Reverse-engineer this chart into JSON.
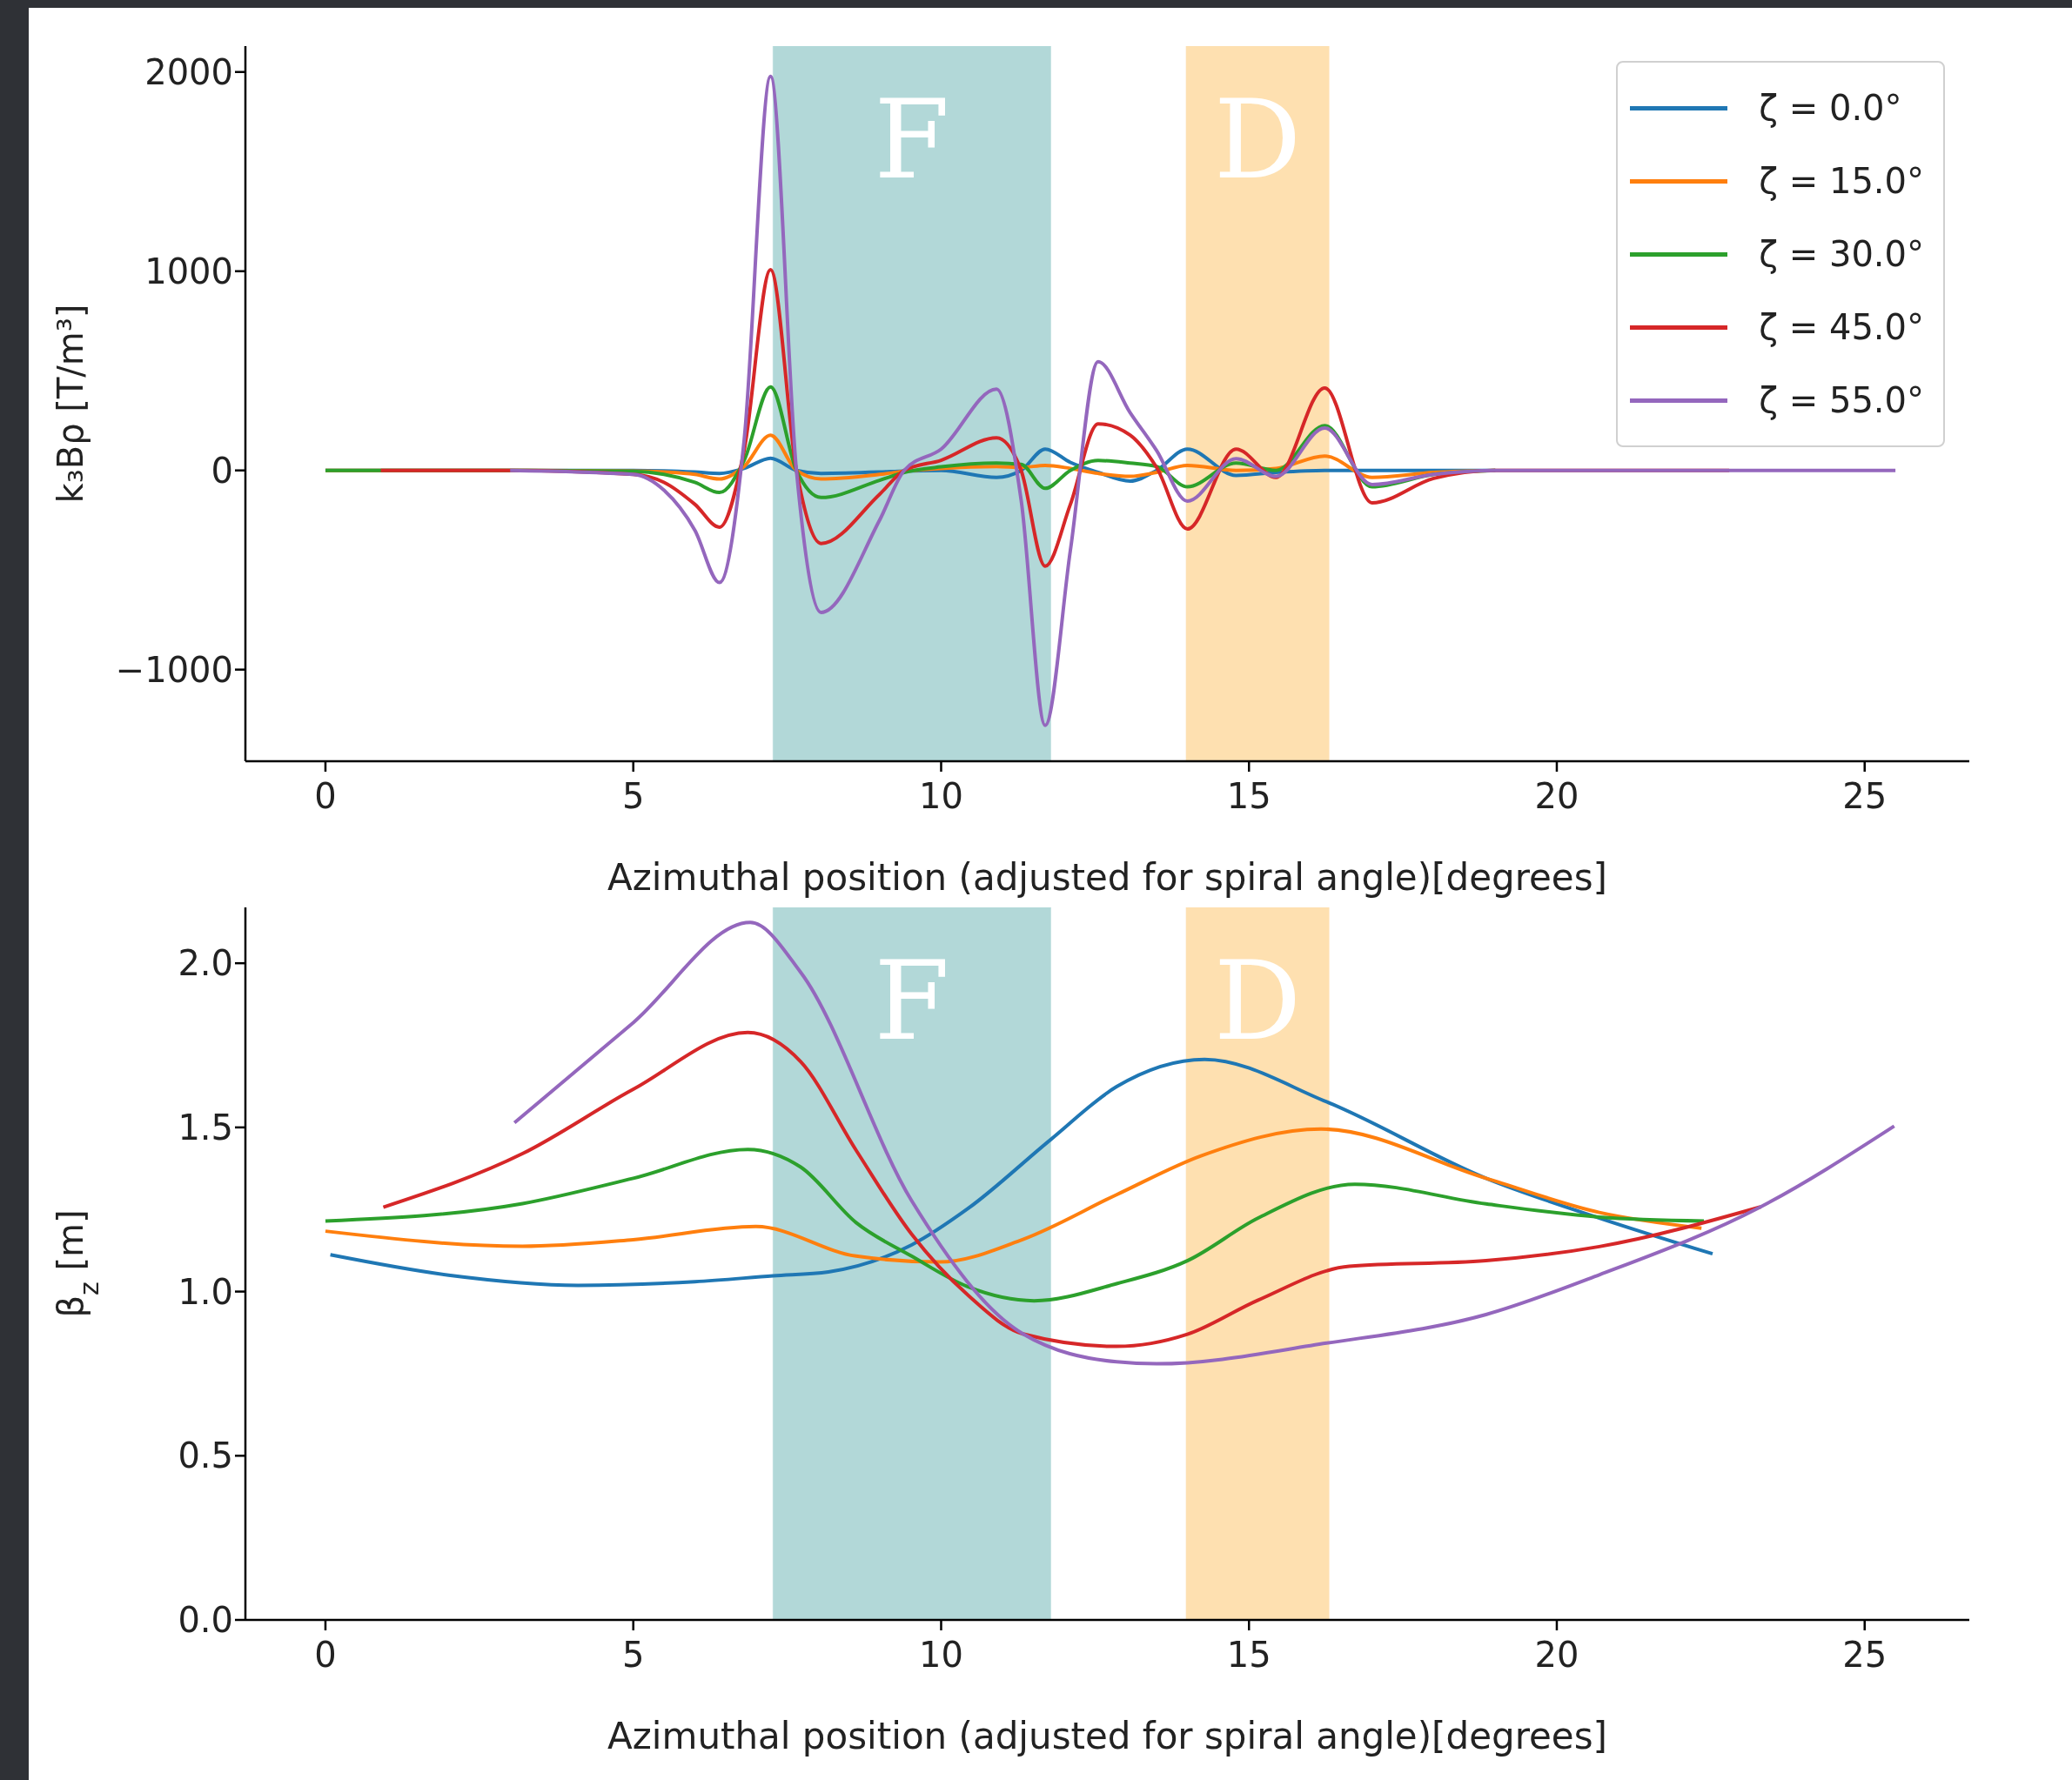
{
  "chart_data": [
    {
      "type": "line",
      "xlabel": "Azimuthal position (adjusted for spiral angle)[degrees]",
      "ylabel": "k₃Bρ [T/m³]",
      "xlim": [
        -1.3,
        26.7
      ],
      "xticks": [
        0,
        5,
        10,
        15,
        20,
        25
      ],
      "ylim": [
        -1460,
        2130
      ],
      "yticks": [
        {
          "value": -1000,
          "label": "−1000"
        },
        0,
        1000,
        2000
      ],
      "legend": "top right",
      "bands": [
        {
          "axis": "x",
          "from": 7.27,
          "to": 11.78,
          "label": "F",
          "color": "#b2d8d8"
        },
        {
          "axis": "x",
          "from": 13.98,
          "to": 16.3,
          "label": "D",
          "color": "#fee0b0"
        }
      ],
      "series": [
        {
          "name": "ζ = 0.0°",
          "color": "#1f77b4",
          "x": [
            0,
            3,
            5,
            5.5,
            6,
            6.4,
            6.8,
            7.23,
            7.65,
            8.05,
            9,
            9.4,
            10,
            10.9,
            11.3,
            11.69,
            12.1,
            12.55,
            13.07,
            13.5,
            14,
            14.79,
            15.44,
            16.23,
            17,
            18,
            19
          ],
          "values": [
            0,
            0,
            0,
            -2,
            -8,
            -15,
            10,
            61,
            0,
            -15,
            -8,
            -3,
            0,
            -35,
            0,
            107,
            40,
            -10,
            -54,
            0,
            107,
            -25,
            -10,
            0,
            0,
            0,
            0
          ]
        },
        {
          "name": "ζ = 15.0°",
          "color": "#ff7f0e",
          "x": [
            0,
            3,
            5,
            5.5,
            6,
            6.4,
            6.8,
            7.23,
            7.65,
            8.05,
            9,
            9.4,
            10,
            10.9,
            11.3,
            11.69,
            12.1,
            12.55,
            13.07,
            13.5,
            14,
            14.79,
            15.44,
            16.23,
            17,
            18,
            19
          ],
          "values": [
            0,
            0,
            -3,
            -8,
            -20,
            -43,
            20,
            177,
            0,
            -43,
            -20,
            -5,
            10,
            20,
            15,
            25,
            10,
            -15,
            -30,
            -10,
            25,
            0,
            10,
            72,
            -35,
            -10,
            0
          ]
        },
        {
          "name": "ζ = 30.0°",
          "color": "#2ca02c",
          "x": [
            0,
            3,
            5,
            5.5,
            6,
            6.4,
            6.8,
            7.23,
            7.65,
            8.05,
            9,
            9.4,
            10,
            10.9,
            11.3,
            11.69,
            12.1,
            12.55,
            13.07,
            13.5,
            14,
            14.79,
            15.44,
            16.23,
            17,
            18,
            19
          ],
          "values": [
            0,
            0,
            -5,
            -20,
            -60,
            -111,
            50,
            419,
            0,
            -136,
            -50,
            -10,
            18,
            37,
            30,
            -90,
            0,
            50,
            37,
            20,
            -82,
            37,
            0,
            225,
            -82,
            -20,
            0
          ]
        },
        {
          "name": "ζ = 45.0°",
          "color": "#d62728",
          "x": [
            0.9,
            3,
            5,
            5.5,
            6,
            6.4,
            6.8,
            7.23,
            7.65,
            8.05,
            9,
            9.4,
            10,
            10.9,
            11.3,
            11.69,
            12.1,
            12.55,
            13.07,
            13.5,
            14,
            14.79,
            15.44,
            16.23,
            17,
            18,
            19,
            20,
            22.8
          ],
          "values": [
            0,
            0,
            -20,
            -60,
            -170,
            -285,
            100,
            1008,
            0,
            -367,
            -120,
            0,
            51,
            164,
            0,
            -481,
            -170,
            234,
            177,
            15,
            -294,
            107,
            -35,
            414,
            -163,
            -40,
            0,
            0,
            0
          ]
        },
        {
          "name": "ζ = 55.0°",
          "color": "#9467bd",
          "x": [
            3,
            5,
            5.5,
            6,
            6.4,
            6.8,
            7.23,
            7.65,
            8.05,
            9,
            9.4,
            10,
            10.9,
            11.3,
            11.69,
            12.1,
            12.55,
            13.07,
            13.5,
            14,
            14.79,
            15.44,
            16.23,
            17,
            18,
            19,
            20,
            22.5,
            25.5
          ],
          "values": [
            0,
            -20,
            -100,
            -300,
            -563,
            150,
            1978,
            0,
            -713,
            -250,
            0,
            107,
            408,
            -150,
            -1280,
            -400,
            546,
            290,
            100,
            -154,
            59,
            -30,
            213,
            -71,
            -20,
            0,
            0,
            0,
            0
          ]
        }
      ]
    },
    {
      "type": "line",
      "xlabel": "Azimuthal position (adjusted for spiral angle)[degrees]",
      "ylabel": "β$_{z}$ [m]",
      "xlim": [
        -1.3,
        26.7
      ],
      "xticks": [
        0,
        5,
        10,
        15,
        20,
        25
      ],
      "ylim": [
        0,
        2.17
      ],
      "yticks": [
        {
          "value": 0,
          "label": "0.0"
        },
        {
          "value": 0.5,
          "label": "0.5"
        },
        {
          "value": 1,
          "label": "1.0"
        },
        {
          "value": 1.5,
          "label": "1.5"
        },
        {
          "value": 2,
          "label": "2.0"
        }
      ],
      "bands": [
        {
          "axis": "x",
          "from": 7.27,
          "to": 11.78,
          "label": "F",
          "color": "#b2d8d8"
        },
        {
          "axis": "x",
          "from": 13.98,
          "to": 16.3,
          "label": "D",
          "color": "#fee0b0"
        }
      ],
      "series": [
        {
          "color": "#1f77b4",
          "x": [
            0.08,
            2,
            4.1,
            6,
            7.27,
            8.17,
            9.52,
            10.43,
            11.78,
            12.85,
            14.28,
            16.26,
            18.85,
            20.69,
            22.53
          ],
          "values": [
            1.112,
            1.05,
            1.019,
            1.03,
            1.048,
            1.06,
            1.142,
            1.252,
            1.463,
            1.624,
            1.707,
            1.578,
            1.345,
            1.224,
            1.115
          ]
        },
        {
          "color": "#ff7f0e",
          "x": [
            0,
            3.2,
            5,
            6.99,
            8.62,
            9.97,
            11.33,
            12.85,
            14.23,
            16.17,
            18.85,
            20.69,
            22.35
          ],
          "values": [
            1.184,
            1.138,
            1.158,
            1.198,
            1.108,
            1.09,
            1.159,
            1.295,
            1.414,
            1.495,
            1.345,
            1.241,
            1.193
          ]
        },
        {
          "color": "#2ca02c",
          "x": [
            0,
            3.2,
            5,
            6.86,
            7.72,
            8.62,
            9.52,
            10.43,
            11.51,
            12.85,
            14,
            15.15,
            16.72,
            18.85,
            20.69,
            22.39
          ],
          "values": [
            1.215,
            1.268,
            1.345,
            1.433,
            1.379,
            1.21,
            1.108,
            1.015,
            0.972,
            1.024,
            1.094,
            1.224,
            1.327,
            1.267,
            1.227,
            1.215
          ]
        },
        {
          "color": "#d62728",
          "x": [
            0.94,
            3.2,
            5,
            6.86,
            7.72,
            8.62,
            9.52,
            10.43,
            11.33,
            12.85,
            14,
            15.15,
            16.63,
            18.85,
            20.69,
            23.31
          ],
          "values": [
            1.257,
            1.42,
            1.616,
            1.789,
            1.7,
            1.43,
            1.175,
            0.99,
            0.871,
            0.833,
            0.87,
            0.974,
            1.077,
            1.094,
            1.137,
            1.258
          ]
        },
        {
          "color": "#9467bd",
          "x": [
            3.07,
            5,
            6.9,
            7.72,
            9.52,
            11.33,
            12.85,
            13.5,
            16.26,
            18.85,
            20.69,
            23.31,
            25.48
          ],
          "values": [
            1.514,
            1.819,
            2.124,
            1.972,
            1.277,
            0.871,
            0.786,
            0.78,
            0.843,
            0.93,
            1.051,
            1.258,
            1.504
          ]
        }
      ]
    }
  ]
}
